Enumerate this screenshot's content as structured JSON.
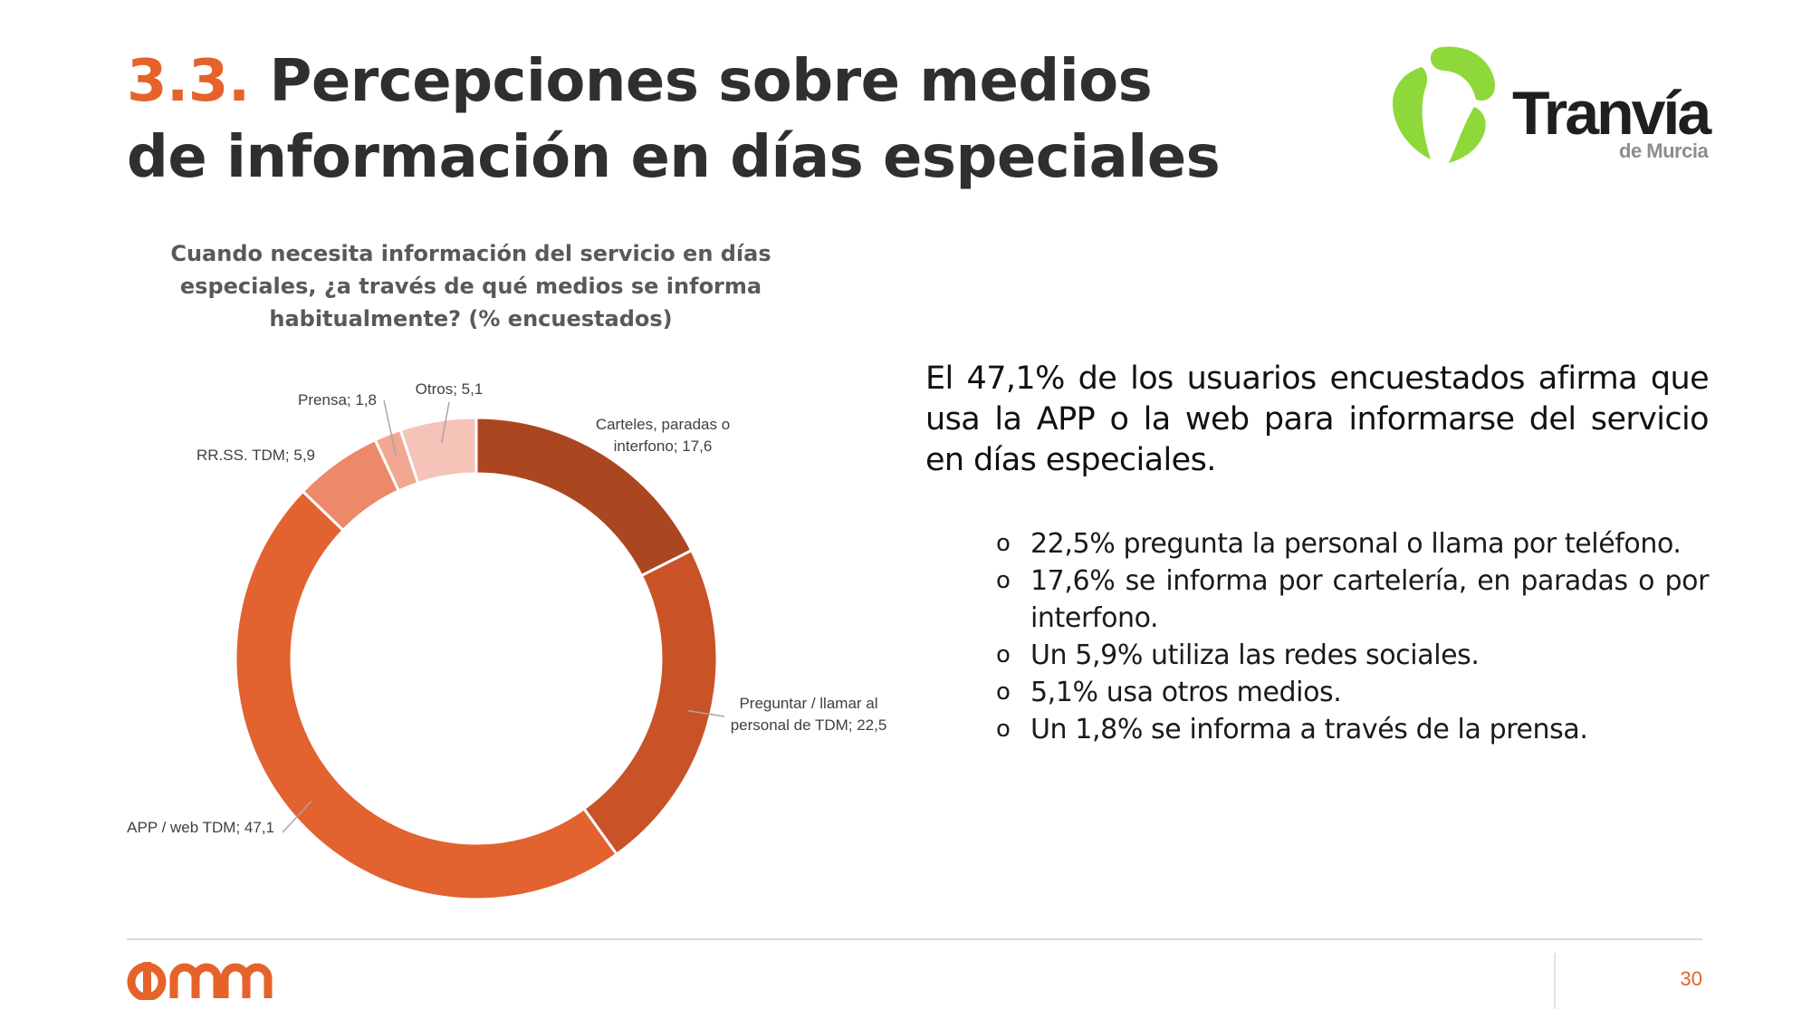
{
  "slide": {
    "title_number": "3.3.",
    "title_line1": "Percepciones sobre medios",
    "title_line2": "de información en días especiales",
    "page_number": "30"
  },
  "logo": {
    "name": "Tranvía",
    "subtitle": "de Murcia",
    "icon": "tram-leaf-logo",
    "color": "#8ed83a"
  },
  "footer_logo": {
    "name": "imm",
    "icon": "imm-logo",
    "color": "#e5622a"
  },
  "chart_data": {
    "type": "pie",
    "variant": "donut",
    "title": "Cuando necesita información del servicio en días especiales, ¿a través de qué medios se informa habitualmente? (% encuestados)",
    "slices": [
      {
        "label": "Carteles, paradas o interfono; 17,6",
        "name": "Carteles, paradas o interfono",
        "value": 17.6,
        "color": "#ab4720"
      },
      {
        "label": "Preguntar / llamar al personal de TDM; 22,5",
        "name": "Preguntar / llamar al personal de TDM",
        "value": 22.5,
        "color": "#c95227"
      },
      {
        "label": "APP / web TDM; 47,1",
        "name": "APP / web TDM",
        "value": 47.1,
        "color": "#e26230"
      },
      {
        "label": "RR.SS. TDM; 5,9",
        "name": "RR.SS. TDM",
        "value": 5.9,
        "color": "#ec8968"
      },
      {
        "label": "Prensa; 1,8",
        "name": "Prensa",
        "value": 1.8,
        "color": "#f1a791"
      },
      {
        "label": "Otros; 5,1",
        "name": "Otros",
        "value": 5.1,
        "color": "#f5c3b8"
      }
    ],
    "label_lines": [
      [
        "Carteles, paradas o",
        "interfono; 17,6"
      ],
      [
        "Preguntar / llamar al",
        "personal de TDM; 22,5"
      ],
      [
        "APP / web TDM; 47,1"
      ],
      [
        "RR.SS. TDM; 5,9"
      ],
      [
        "Prensa; 1,8"
      ],
      [
        "Otros; 5,1"
      ]
    ]
  },
  "summary": {
    "headline": "El 47,1% de los usuarios encuestados afirma que usa la APP o la web para informarse del servicio en días especiales.",
    "bullet_marker": "o",
    "bullets": [
      "22,5% pregunta la personal o llama por teléfono.",
      "17,6% se informa por cartelería, en paradas o por interfono.",
      "Un 5,9% utiliza las redes sociales.",
      "5,1% usa otros medios.",
      "Un 1,8% se informa a través de la prensa."
    ]
  }
}
